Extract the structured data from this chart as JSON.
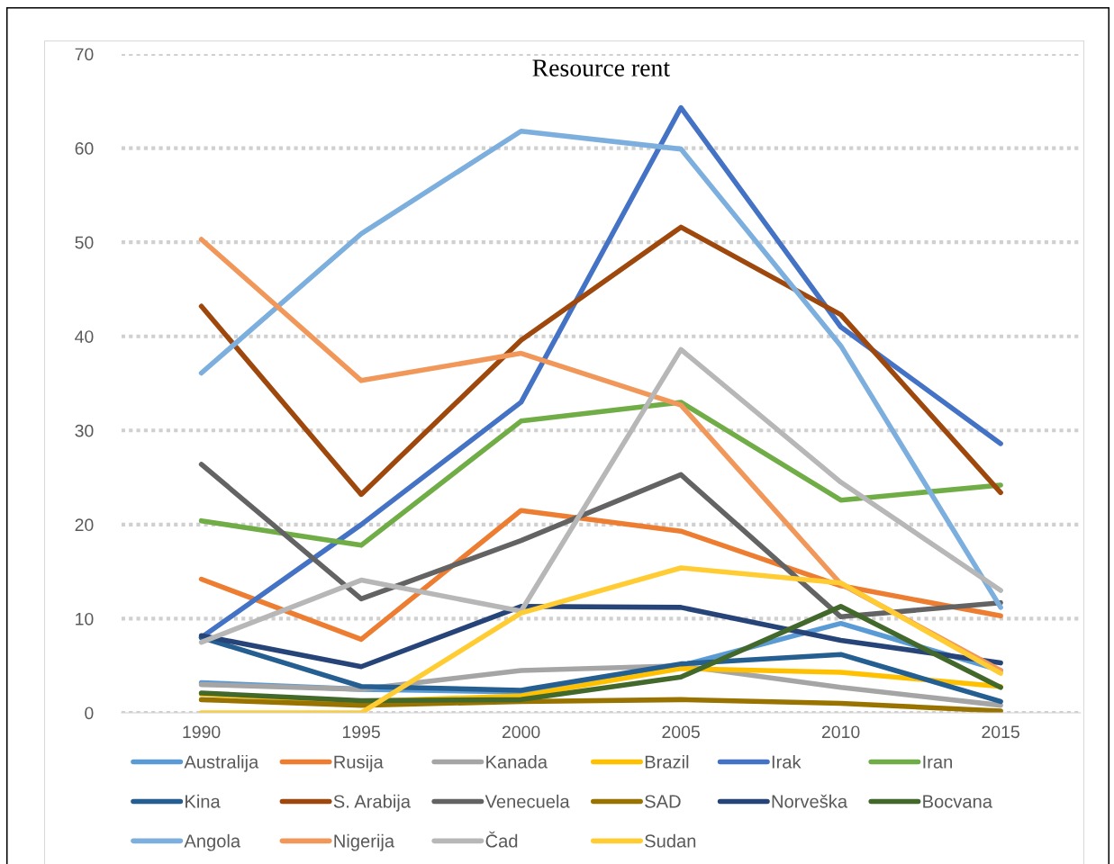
{
  "chart_data": {
    "type": "line",
    "title": "Resource rent",
    "categories": [
      "1990",
      "1995",
      "2000",
      "2005",
      "2010",
      "2015"
    ],
    "ylim": [
      0,
      70
    ],
    "yticks": [
      0,
      10,
      20,
      30,
      40,
      50,
      60,
      70
    ],
    "grid": "y",
    "legend": "bottom",
    "marker": "none",
    "line_style": "solid",
    "series": [
      {
        "name": "Australija",
        "color": "#5b9bd5",
        "values": [
          3.2,
          2.5,
          2.2,
          5.0,
          9.5,
          4.5
        ]
      },
      {
        "name": "Rusija",
        "color": "#ed7d31",
        "values": [
          14.2,
          7.8,
          21.5,
          19.3,
          13.5,
          10.3
        ]
      },
      {
        "name": "Kanada",
        "color": "#a5a5a5",
        "values": [
          3.0,
          2.5,
          4.5,
          5.0,
          2.7,
          0.8
        ]
      },
      {
        "name": "Brazil",
        "color": "#ffc000",
        "values": [
          2.0,
          1.2,
          1.8,
          4.7,
          4.3,
          2.8
        ]
      },
      {
        "name": "Irak",
        "color": "#4472c4",
        "values": [
          8.0,
          20.0,
          33.0,
          64.3,
          41.0,
          28.6
        ]
      },
      {
        "name": "Iran",
        "color": "#70ad47",
        "values": [
          20.4,
          17.8,
          31.0,
          33.0,
          22.6,
          24.2
        ]
      },
      {
        "name": "Kina",
        "color": "#255e91",
        "values": [
          8.0,
          2.8,
          2.4,
          5.2,
          6.2,
          1.2
        ]
      },
      {
        "name": "S. Arabija",
        "color": "#9e480e",
        "values": [
          43.2,
          23.2,
          39.6,
          51.6,
          42.3,
          23.4
        ]
      },
      {
        "name": "Venecuela",
        "color": "#636363",
        "values": [
          26.4,
          12.1,
          18.3,
          25.3,
          10.2,
          11.7
        ]
      },
      {
        "name": "SAD",
        "color": "#997300",
        "values": [
          1.4,
          0.8,
          1.2,
          1.4,
          1.0,
          0.2
        ]
      },
      {
        "name": "Norveška",
        "color": "#264478",
        "values": [
          8.2,
          4.9,
          11.3,
          11.2,
          7.7,
          5.3
        ]
      },
      {
        "name": "Bocvana",
        "color": "#43682b",
        "values": [
          2.1,
          1.3,
          1.4,
          3.8,
          11.3,
          2.7
        ]
      },
      {
        "name": "Angola",
        "color": "#7cafdd",
        "values": [
          36.1,
          50.9,
          61.8,
          59.9,
          39.0,
          11.2
        ]
      },
      {
        "name": "Nigerija",
        "color": "#f1975a",
        "values": [
          50.3,
          35.3,
          38.2,
          32.7,
          13.7,
          4.5
        ]
      },
      {
        "name": "Čad",
        "color": "#b7b7b7",
        "values": [
          7.5,
          14.1,
          10.8,
          38.6,
          24.5,
          13.0
        ]
      },
      {
        "name": "Sudan",
        "color": "#ffcd33",
        "values": [
          0.0,
          0.0,
          10.6,
          15.4,
          13.8,
          4.2
        ]
      }
    ]
  }
}
